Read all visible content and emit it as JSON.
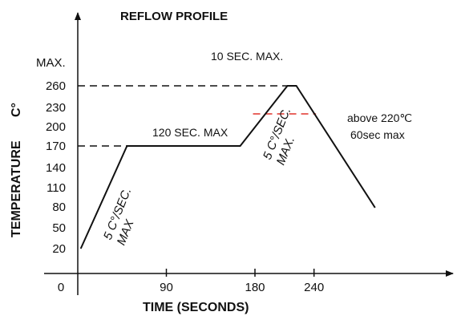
{
  "chart_data": {
    "type": "line",
    "title": "REFLOW PROFILE",
    "xlabel": "TIME (SECONDS)",
    "ylabel": "TEMPERATURE",
    "ylabel_unit": "C°",
    "y_max_label": "MAX.",
    "xlim": [
      0,
      300
    ],
    "ylim": [
      0,
      290
    ],
    "x_ticks": [
      "0",
      "90",
      "180",
      "240"
    ],
    "y_ticks": [
      "20",
      "50",
      "80",
      "110",
      "140",
      "170",
      "200",
      "230",
      "260"
    ],
    "series": [
      {
        "x": [
          3,
          50,
          165,
          213,
          222,
          302
        ],
        "y": [
          20,
          170,
          170,
          260,
          260,
          79
        ]
      }
    ],
    "reference_lines": [
      {
        "y": 260,
        "style": "dashed",
        "color": "#111111"
      },
      {
        "y": 170,
        "style": "dashed",
        "color": "#111111"
      },
      {
        "y": 220,
        "style": "dashed",
        "color": "#e0322a"
      }
    ],
    "annotations": {
      "ramp_up": [
        "5 C°/SEC.",
        "MAX"
      ],
      "soak": "120 SEC. MAX",
      "ramp_to_peak": [
        "5 C°/SEC.",
        "MAX."
      ],
      "peak": "10 SEC. MAX.",
      "above_220": [
        "above 220℃",
        "60sec max"
      ]
    },
    "colors": {
      "axis": "#111111",
      "curve": "#111111",
      "highlight": "#e0322a"
    }
  }
}
